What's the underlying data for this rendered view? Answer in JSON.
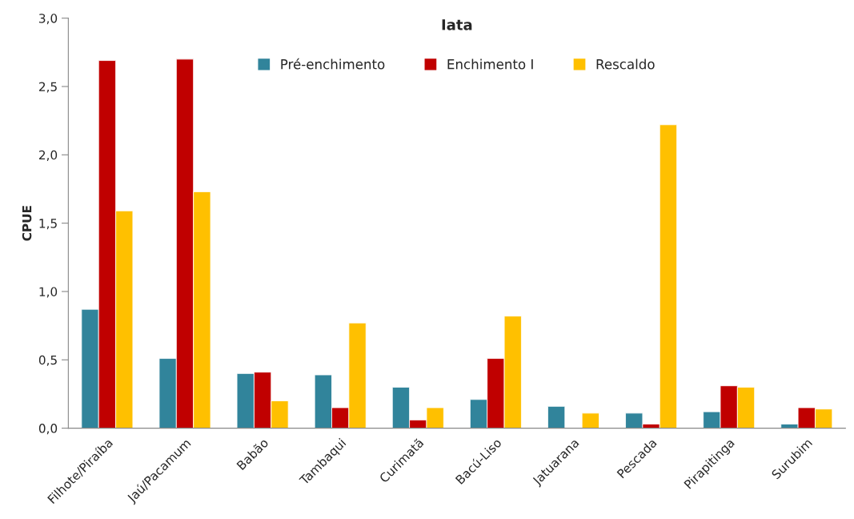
{
  "chart_data": {
    "type": "bar",
    "title": "Iata",
    "ylabel": "CPUE",
    "categories": [
      "Filhote/Piraíba",
      "Jaú/Pacamum",
      "Babão",
      "Tambaqui",
      "Curimatã",
      "Bacú-Liso",
      "Jatuarana",
      "Pescada",
      "Pirapitinga",
      "Surubim"
    ],
    "series": [
      {
        "name": "Pré-enchimento",
        "color": "#31849b",
        "values": [
          0.87,
          0.51,
          0.4,
          0.39,
          0.3,
          0.21,
          0.16,
          0.11,
          0.12,
          0.03
        ]
      },
      {
        "name": "Enchimento I",
        "color": "#c00000",
        "values": [
          2.69,
          2.7,
          0.41,
          0.15,
          0.06,
          0.51,
          null,
          0.03,
          0.31,
          0.15
        ]
      },
      {
        "name": "Rescaldo",
        "color": "#ffc000",
        "values": [
          1.59,
          1.73,
          0.2,
          0.77,
          0.15,
          0.82,
          0.11,
          2.22,
          0.3,
          0.14
        ]
      }
    ],
    "ylim": [
      0,
      3
    ],
    "yticks": [
      {
        "value": 0,
        "label": "0,0"
      },
      {
        "value": 0.5,
        "label": "0,5"
      },
      {
        "value": 1,
        "label": "1,0"
      },
      {
        "value": 1.5,
        "label": "1,5"
      },
      {
        "value": 2,
        "label": "2,0"
      },
      {
        "value": 2.5,
        "label": "2,5"
      },
      {
        "value": 3,
        "label": "3,0"
      }
    ],
    "grid": false,
    "legend": "top"
  }
}
